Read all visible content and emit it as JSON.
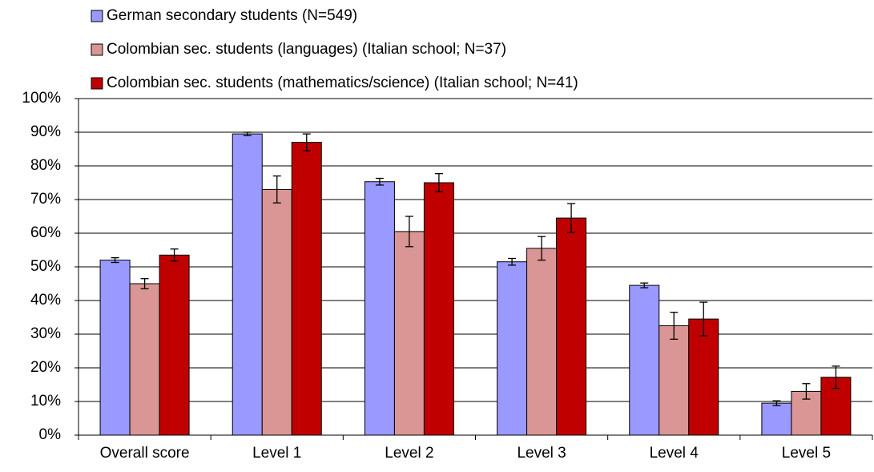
{
  "chart_data": {
    "type": "bar",
    "categories": [
      "Overall score",
      "Level 1",
      "Level 2",
      "Level 3",
      "Level 4",
      "Level 5"
    ],
    "series": [
      {
        "name": "German secondary students (N=549)",
        "color": "#9999ff",
        "values": [
          52,
          89.5,
          75.3,
          51.5,
          44.5,
          9.5
        ],
        "errors": [
          0.7,
          0.5,
          1,
          1,
          0.7,
          0.7
        ]
      },
      {
        "name": "Colombian sec. students (languages) (Italian school; N=37)",
        "color": "#da9694",
        "values": [
          45,
          73,
          60.5,
          55.5,
          32.5,
          13
        ],
        "errors": [
          1.5,
          4,
          4.5,
          3.5,
          4,
          2.3
        ]
      },
      {
        "name": "Colombian sec. students (mathematics/science) (Italian school; N=41)",
        "color": "#c00000",
        "values": [
          53.5,
          87,
          75,
          64.5,
          34.5,
          17.2
        ],
        "errors": [
          1.8,
          2.5,
          2.7,
          4.3,
          5,
          3.3
        ]
      }
    ],
    "ylim": [
      0,
      100
    ],
    "yticks": [
      {
        "value": 0,
        "label": "0%"
      },
      {
        "value": 10,
        "label": "10%"
      },
      {
        "value": 20,
        "label": "20%"
      },
      {
        "value": 30,
        "label": "30%"
      },
      {
        "value": 40,
        "label": "40%"
      },
      {
        "value": 50,
        "label": "50%"
      },
      {
        "value": 60,
        "label": "60%"
      },
      {
        "value": 70,
        "label": "70%"
      },
      {
        "value": 80,
        "label": "80%"
      },
      {
        "value": 90,
        "label": "90%"
      },
      {
        "value": 100,
        "label": "100%"
      }
    ],
    "grid": true,
    "legend": "top-left"
  }
}
